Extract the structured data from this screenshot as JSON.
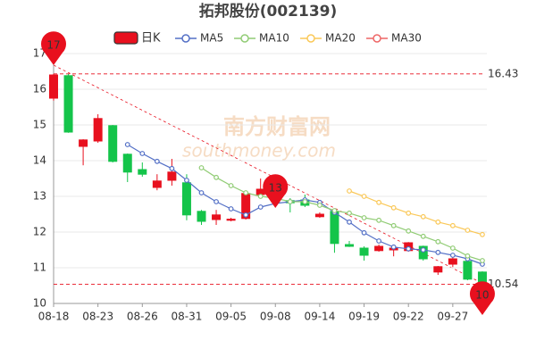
{
  "chart_data": {
    "type": "candlestick",
    "title": "拓邦股份(002139)",
    "watermark": [
      "南方财富网",
      "southmoney.com"
    ],
    "categories": [
      "08-18",
      null,
      null,
      "08-23",
      null,
      null,
      "08-26",
      null,
      null,
      "08-31",
      null,
      null,
      "09-05",
      null,
      null,
      "09-08",
      null,
      null,
      "09-14",
      null,
      null,
      "09-19",
      null,
      null,
      "09-22",
      null,
      null,
      "09-27",
      null,
      null
    ],
    "candles": {
      "name": "日K",
      "up_color": "#e8101e",
      "down_color": "#14c44a",
      "open": [
        15.75,
        16.38,
        14.4,
        14.55,
        14.98,
        14.18,
        13.75,
        13.25,
        13.45,
        13.38,
        12.58,
        12.35,
        12.33,
        12.38,
        13.05,
        13.2,
        12.88,
        12.9,
        12.43,
        12.58,
        11.65,
        11.55,
        11.48,
        11.5,
        11.48,
        11.6,
        10.88,
        11.1,
        11.18,
        10.88
      ],
      "high": [
        16.43,
        16.43,
        14.6,
        15.3,
        15.0,
        14.2,
        13.95,
        13.62,
        14.05,
        13.62,
        12.62,
        12.62,
        12.4,
        13.1,
        13.5,
        13.3,
        12.95,
        13.05,
        12.55,
        12.65,
        11.75,
        11.6,
        11.65,
        11.6,
        11.72,
        11.62,
        11.05,
        11.3,
        11.3,
        10.9
      ],
      "low": [
        15.68,
        14.78,
        13.87,
        14.5,
        13.95,
        13.4,
        13.55,
        13.17,
        13.3,
        12.33,
        12.2,
        12.2,
        12.3,
        12.35,
        12.95,
        12.8,
        12.55,
        12.7,
        12.4,
        11.42,
        11.58,
        11.2,
        11.45,
        11.32,
        11.45,
        11.2,
        10.8,
        11.02,
        10.65,
        10.54
      ],
      "close": [
        16.4,
        14.8,
        14.58,
        15.18,
        13.98,
        13.68,
        13.62,
        13.43,
        13.68,
        12.48,
        12.3,
        12.48,
        12.36,
        13.08,
        13.2,
        12.85,
        12.82,
        12.75,
        12.5,
        11.68,
        11.6,
        11.35,
        11.6,
        11.55,
        11.7,
        11.25,
        11.03,
        11.25,
        10.68,
        10.6
      ]
    },
    "ma_series": [
      {
        "name": "MA5",
        "color": "#5470c6",
        "values": [
          null,
          null,
          null,
          null,
          null,
          14.45,
          14.2,
          13.98,
          13.78,
          13.45,
          13.1,
          12.85,
          12.65,
          12.48,
          12.7,
          12.8,
          12.85,
          12.9,
          12.83,
          12.55,
          12.28,
          11.98,
          11.75,
          11.58,
          11.53,
          11.5,
          11.43,
          11.35,
          11.25,
          11.1
        ]
      },
      {
        "name": "MA10",
        "color": "#91cc75",
        "values": [
          null,
          null,
          null,
          null,
          null,
          null,
          null,
          null,
          null,
          null,
          13.8,
          13.53,
          13.3,
          13.1,
          13.0,
          12.95,
          12.85,
          12.85,
          12.75,
          12.6,
          12.53,
          12.4,
          12.33,
          12.18,
          12.03,
          11.88,
          11.73,
          11.55,
          11.33,
          11.2
        ]
      },
      {
        "name": "MA20",
        "color": "#fac858",
        "values": [
          null,
          null,
          null,
          null,
          null,
          null,
          null,
          null,
          null,
          null,
          null,
          null,
          null,
          null,
          null,
          null,
          null,
          null,
          null,
          null,
          13.15,
          13.0,
          12.83,
          12.68,
          12.53,
          12.43,
          12.28,
          12.18,
          12.05,
          11.93
        ]
      },
      {
        "name": "MA30",
        "color": "#ee6666",
        "values": [
          null,
          null,
          null,
          null,
          null,
          null,
          null,
          null,
          null,
          null,
          null,
          null,
          null,
          null,
          null,
          null,
          null,
          null,
          null,
          null,
          null,
          null,
          null,
          null,
          null,
          null,
          null,
          null,
          null,
          null
        ]
      }
    ],
    "ref_lines": [
      16.43,
      10.54
    ],
    "pins": [
      {
        "candle": 0,
        "value": 17
      },
      {
        "candle": 15,
        "value": 13
      },
      {
        "candle": 29,
        "value": 10
      }
    ],
    "ylim": [
      10,
      17
    ],
    "yticks": [
      10,
      11,
      12,
      13,
      14,
      15,
      16,
      17
    ],
    "grid": true
  }
}
